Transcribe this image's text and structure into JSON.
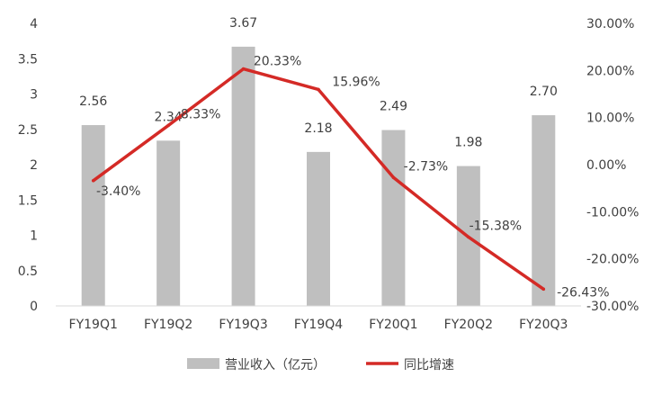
{
  "chart_data": {
    "type": "bar+line",
    "categories": [
      "FY19Q1",
      "FY19Q2",
      "FY19Q3",
      "FY19Q4",
      "FY20Q1",
      "FY20Q2",
      "FY20Q3"
    ],
    "series": [
      {
        "name": "营业收入（亿元）",
        "type": "bar",
        "axis": "left",
        "values": [
          2.56,
          2.34,
          3.67,
          2.18,
          2.49,
          1.98,
          2.7
        ],
        "labels": [
          "2.56",
          "2.34",
          "3.67",
          "2.18",
          "2.49",
          "1.98",
          "2.70"
        ],
        "color": "#bfbfbf"
      },
      {
        "name": "同比增速",
        "type": "line",
        "axis": "right",
        "values": [
          -3.4,
          8.33,
          20.33,
          15.96,
          -2.73,
          -15.38,
          -26.43
        ],
        "labels": [
          "-3.40%",
          "8.33%",
          "20.33%",
          "15.96%",
          "-2.73%",
          "-15.38%",
          "-26.43%"
        ],
        "color": "#d42a26"
      }
    ],
    "y_left": {
      "ylim": [
        0,
        4
      ],
      "ticks": [
        "0",
        "0.5",
        "1",
        "1.5",
        "2",
        "2.5",
        "3",
        "3.5",
        "4"
      ]
    },
    "y_right": {
      "ylim": [
        -30,
        30
      ],
      "ticks": [
        "-30.00%",
        "-20.00%",
        "-10.00%",
        "0.00%",
        "10.00%",
        "20.00%",
        "30.00%"
      ]
    },
    "grid": false,
    "legend": "bottom",
    "legend_labels": [
      "营业收入（亿元）",
      "同比增速"
    ]
  }
}
